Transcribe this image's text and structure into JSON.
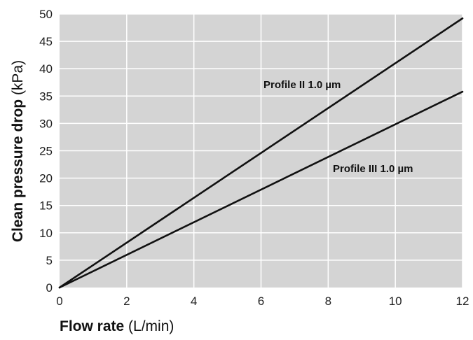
{
  "chart_data": {
    "type": "line",
    "title": "",
    "xlabel": {
      "bold": "Flow rate",
      "normal": " (L/min)"
    },
    "ylabel": {
      "bold": "Clean pressure drop",
      "normal": " (kPa)"
    },
    "xlim": [
      0,
      12
    ],
    "ylim": [
      0,
      50
    ],
    "x_ticks": [
      0,
      2,
      4,
      6,
      8,
      10,
      12
    ],
    "y_ticks": [
      0,
      5,
      10,
      15,
      20,
      25,
      30,
      35,
      40,
      45,
      50
    ],
    "grid": true,
    "series": [
      {
        "name": "Profile II 1.0 µm",
        "x": [
          0,
          12
        ],
        "y": [
          0,
          49.2
        ],
        "color": "#111111"
      },
      {
        "name": "Profile III 1.0 µm",
        "x": [
          0,
          12
        ],
        "y": [
          0,
          35.8
        ],
        "color": "#111111"
      }
    ],
    "plot_background": "#d4d4d4",
    "grid_color": "#ffffff"
  }
}
